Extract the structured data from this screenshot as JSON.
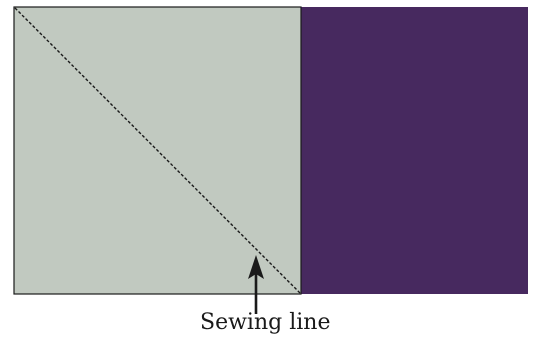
{
  "diagram": {
    "label_text": "Sewing line",
    "colors": {
      "left_square_fill": "#c1c9c0",
      "right_square_fill": "#47295f",
      "outline": "#1a1a1a",
      "sewing_line": "#1a1a1a",
      "arrow": "#1a1a1a",
      "background": "#ffffff"
    },
    "icons": {
      "arrow": "arrow-up-icon"
    }
  }
}
